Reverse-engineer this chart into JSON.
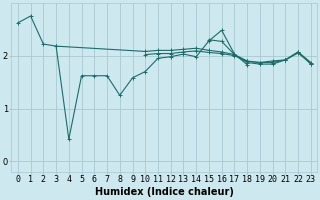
{
  "background_color": "#cde8ee",
  "grid_color": "#a8c8d0",
  "line_color": "#1a6e68",
  "xlabel": "Humidex (Indice chaleur)",
  "xlabel_fontsize": 7,
  "tick_fontsize": 6,
  "x_ticks": [
    0,
    1,
    2,
    3,
    4,
    5,
    6,
    7,
    8,
    9,
    10,
    11,
    12,
    13,
    14,
    15,
    16,
    17,
    18,
    19,
    20,
    21,
    22,
    23
  ],
  "y_ticks": [
    0,
    1,
    2
  ],
  "ylim": [
    -0.2,
    3.0
  ],
  "xlim": [
    -0.5,
    23.5
  ],
  "series": [
    [
      2.62,
      2.75,
      2.22,
      2.18,
      null,
      null,
      null,
      null,
      null,
      null,
      2.08,
      2.1,
      2.1,
      2.12,
      2.14,
      2.1,
      2.07,
      2.02,
      1.9,
      1.87,
      1.87,
      1.92,
      2.07,
      1.87
    ],
    [
      null,
      null,
      null,
      2.18,
      0.42,
      1.62,
      1.62,
      1.62,
      1.25,
      1.58,
      1.7,
      1.95,
      1.98,
      2.03,
      1.98,
      2.28,
      2.48,
      2.03,
      1.83,
      null,
      null,
      null,
      null,
      null
    ],
    [
      null,
      null,
      null,
      null,
      null,
      null,
      null,
      null,
      null,
      null,
      null,
      null,
      null,
      null,
      null,
      2.3,
      2.27,
      2.02,
      1.87,
      1.84,
      1.84,
      1.92,
      2.07,
      1.84
    ],
    [
      null,
      null,
      null,
      null,
      null,
      null,
      null,
      null,
      null,
      null,
      2.02,
      2.04,
      2.04,
      2.07,
      2.09,
      2.06,
      2.04,
      2.0,
      1.89,
      1.87,
      1.9,
      1.92,
      2.05,
      1.85
    ]
  ]
}
